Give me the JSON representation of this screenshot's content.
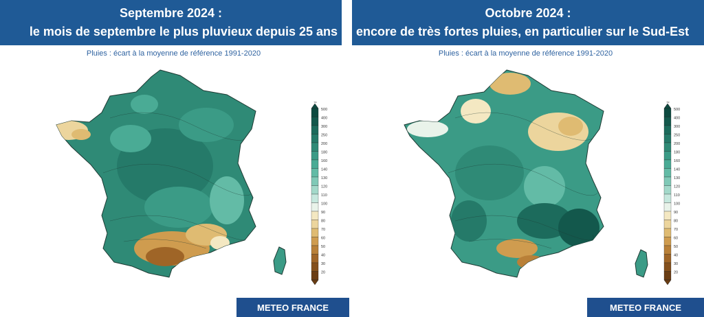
{
  "panels": [
    {
      "title_line1": "Septembre 2024 :",
      "title_line2": "le mois de septembre le plus pluvieux depuis 25 ans",
      "subtitle": "Pluies : écart à la moyenne de référence 1991-2020",
      "brand": "METEO FRANCE"
    },
    {
      "title_line1": "Octobre 2024 :",
      "title_line2": "encore de très fortes pluies, en particulier sur le Sud-Est",
      "subtitle": "Pluies : écart à la moyenne de référence 1991-2020",
      "brand": "METEO FRANCE"
    }
  ],
  "legend": {
    "unit": "%",
    "ticks": [
      "500",
      "400",
      "300",
      "250",
      "200",
      "180",
      "160",
      "140",
      "130",
      "120",
      "110",
      "100",
      "90",
      "80",
      "70",
      "60",
      "50",
      "40",
      "30",
      "20"
    ],
    "colors": [
      "#0d4a40",
      "#13584c",
      "#1c6b5c",
      "#257a69",
      "#2f8a76",
      "#3b9b86",
      "#4aab95",
      "#63bba6",
      "#80c9b7",
      "#a3d9ca",
      "#c6e8de",
      "#e9f3ea",
      "#f4e8c2",
      "#ecd59d",
      "#dfbb72",
      "#cf9c4f",
      "#b98038",
      "#9f6527",
      "#84501c",
      "#6a3d13"
    ]
  },
  "colors": {
    "banner": "#1f5a96",
    "brand_box": "#1f4f8e",
    "subtitle_text": "#2e62a0"
  }
}
